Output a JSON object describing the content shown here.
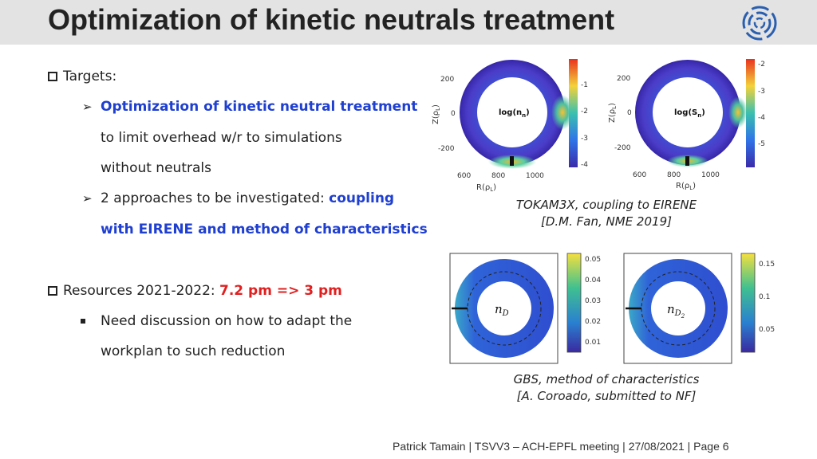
{
  "slide": {
    "title": "Optimization of kinetic neutrals treatment",
    "logo_icon": "institute-logo-icon"
  },
  "bullets": {
    "targets_label": "Targets:",
    "target1_highlight": "Optimization of kinetic neutral treatment",
    "target1_rest_line1": "to limit overhead w/r to simulations",
    "target1_rest_line2": "without neutrals",
    "target2_plain": "2 approaches to be investigated: ",
    "target2_highlight_line1": "coupling",
    "target2_highlight_line2": "with EIRENE and method of characteristics",
    "resources_plain": "Resources 2021-2022: ",
    "resources_highlight": "7.2 pm => 3 pm",
    "resources_sub_line1": "Need discussion on how to adapt the",
    "resources_sub_line2": "workplan to such reduction"
  },
  "figure_top": {
    "left_label": "log(n_n)",
    "left_label_main": "log(n",
    "left_label_sub": "n",
    "left_label_end": ")",
    "right_label_main": "log(S",
    "right_label_sub": "n",
    "right_label_end": ")",
    "y_axis_label": "Z(ρ",
    "y_axis_sub": "L",
    "y_axis_end": ")",
    "x_axis_label": "R(ρ",
    "x_axis_sub": "L",
    "x_axis_end": ")",
    "y_ticks": [
      "200",
      "0",
      "-200"
    ],
    "x_ticks": [
      "600",
      "800",
      "1000"
    ],
    "left_colorbar_ticks": [
      "-1",
      "-2",
      "-3",
      "-4"
    ],
    "right_colorbar_ticks": [
      "-2",
      "-3",
      "-4",
      "-5"
    ],
    "caption_line1": "TOKAM3X, coupling to EIRENE",
    "caption_line2": "[D.M. Fan, NME 2019]"
  },
  "figure_bottom": {
    "left_label_main": "n",
    "left_label_sub": "D",
    "right_label_main": "n",
    "right_label_sub": "D",
    "right_label_subsub": "2",
    "left_colorbar_ticks": [
      "0.05",
      "0.04",
      "0.03",
      "0.02",
      "0.01"
    ],
    "right_colorbar_ticks": [
      "0.15",
      "0.1",
      "0.05"
    ],
    "caption_line1": "GBS, method of characteristics",
    "caption_line2": "[A. Coroado, submitted to NF]"
  },
  "footer": {
    "text": "Patrick Tamain | TSVV3 – ACH-EPFL meeting | 27/08/2021  | Page 6"
  }
}
